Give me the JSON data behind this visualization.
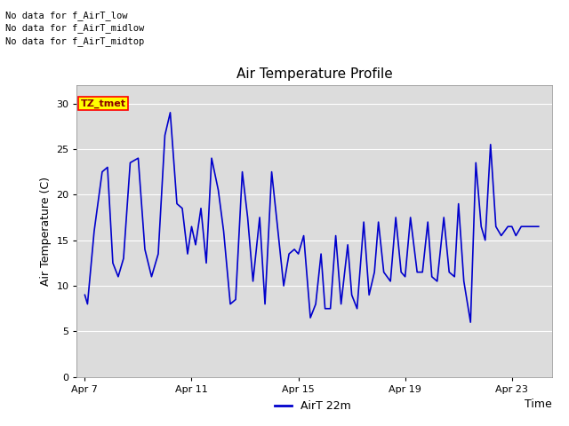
{
  "title": "Air Temperature Profile",
  "xlabel": "Time",
  "ylabel": "Air Temperature (C)",
  "ylim": [
    0,
    32
  ],
  "yticks": [
    0,
    5,
    10,
    15,
    20,
    25,
    30
  ],
  "line_color": "#0000CC",
  "line_width": 1.2,
  "bg_color": "#DCDCDC",
  "fig_bg_color": "#FFFFFF",
  "legend_label": "AirT 22m",
  "annotations_outside": [
    "No data for f_AirT_low",
    "No data for f_AirT_midlow",
    "No data for f_AirT_midtop"
  ],
  "tz_label": "TZ_tmet",
  "x_tick_labels": [
    "Apr 7",
    "Apr 11",
    "Apr 15",
    "Apr 19",
    "Apr 23"
  ],
  "x_tick_positions": [
    0,
    4,
    8,
    12,
    16
  ],
  "xlim": [
    -0.3,
    17.5
  ],
  "data_x": [
    0.0,
    0.1,
    0.35,
    0.65,
    0.85,
    1.05,
    1.25,
    1.45,
    1.7,
    2.0,
    2.25,
    2.5,
    2.75,
    3.0,
    3.2,
    3.45,
    3.65,
    3.85,
    4.0,
    4.15,
    4.35,
    4.55,
    4.75,
    5.0,
    5.2,
    5.45,
    5.65,
    5.9,
    6.1,
    6.3,
    6.55,
    6.75,
    7.0,
    7.2,
    7.45,
    7.65,
    7.85,
    8.0,
    8.2,
    8.45,
    8.65,
    8.85,
    9.0,
    9.2,
    9.4,
    9.6,
    9.85,
    10.0,
    10.2,
    10.45,
    10.65,
    10.85,
    11.0,
    11.2,
    11.45,
    11.65,
    11.85,
    12.0,
    12.2,
    12.45,
    12.65,
    12.85,
    13.0,
    13.2,
    13.45,
    13.65,
    13.85,
    14.0,
    14.2,
    14.45,
    14.65,
    14.85,
    15.0,
    15.2,
    15.4,
    15.6,
    15.85,
    16.0,
    16.15,
    16.35,
    16.55,
    16.75,
    17.0
  ],
  "data_y": [
    9.0,
    8.0,
    16.0,
    22.5,
    23.0,
    12.5,
    11.0,
    13.0,
    23.5,
    24.0,
    14.0,
    11.0,
    13.5,
    26.5,
    29.0,
    19.0,
    18.5,
    13.5,
    16.5,
    14.5,
    18.5,
    12.5,
    24.0,
    20.5,
    16.0,
    8.0,
    8.5,
    22.5,
    17.5,
    10.5,
    17.5,
    8.0,
    22.5,
    17.0,
    10.0,
    13.5,
    14.0,
    13.5,
    15.5,
    6.5,
    8.0,
    13.5,
    7.5,
    7.5,
    15.5,
    8.0,
    14.5,
    9.0,
    7.5,
    17.0,
    9.0,
    11.5,
    17.0,
    11.5,
    10.5,
    17.5,
    11.5,
    11.0,
    17.5,
    11.5,
    11.5,
    17.0,
    11.0,
    10.5,
    17.5,
    11.5,
    11.0,
    19.0,
    10.5,
    6.0,
    23.5,
    16.5,
    15.0,
    25.5,
    16.5,
    15.5,
    16.5,
    16.5,
    15.5,
    16.5,
    16.5,
    16.5,
    16.5
  ]
}
